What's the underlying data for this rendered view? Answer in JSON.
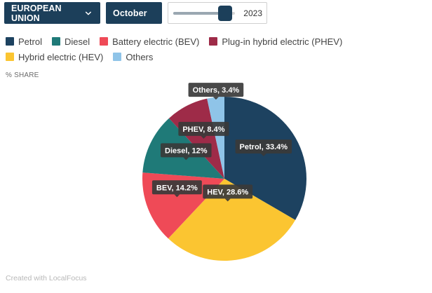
{
  "controls": {
    "region": {
      "label": "EUROPEAN UNION",
      "icon": "chevron-down-icon"
    },
    "month": {
      "label": "October",
      "icon": "chevron-down-icon"
    },
    "year_slider": {
      "value": "2023",
      "position": 0.84
    }
  },
  "share_label": "% SHARE",
  "footer": "Created with LocalFocus",
  "colors": {
    "petrol": "#1d4260",
    "diesel": "#1f7a78",
    "bev": "#ef4a57",
    "phev": "#9e2b48",
    "hev": "#fbc531",
    "others": "#8fc4e8"
  },
  "chart_data": {
    "type": "pie",
    "ylabel": "% SHARE",
    "legend_position": "top",
    "legend": [
      {
        "key": "petrol",
        "label": "Petrol"
      },
      {
        "key": "diesel",
        "label": "Diesel"
      },
      {
        "key": "bev",
        "label": "Battery electric (BEV)"
      },
      {
        "key": "phev",
        "label": "Plug-in hybrid electric (PHEV)"
      },
      {
        "key": "hev",
        "label": "Hybrid electric (HEV)"
      },
      {
        "key": "others",
        "label": "Others"
      }
    ],
    "slices": [
      {
        "key": "petrol",
        "value": 33.4,
        "label": "Petrol, 33.4%"
      },
      {
        "key": "hev",
        "value": 28.6,
        "label": "HEV, 28.6%"
      },
      {
        "key": "bev",
        "value": 14.2,
        "label": "BEV, 14.2%"
      },
      {
        "key": "diesel",
        "value": 12,
        "label": "Diesel, 12%"
      },
      {
        "key": "phev",
        "value": 8.4,
        "label": "PHEV, 8.4%"
      },
      {
        "key": "others",
        "value": 3.4,
        "label": "Others, 3.4%"
      }
    ]
  }
}
